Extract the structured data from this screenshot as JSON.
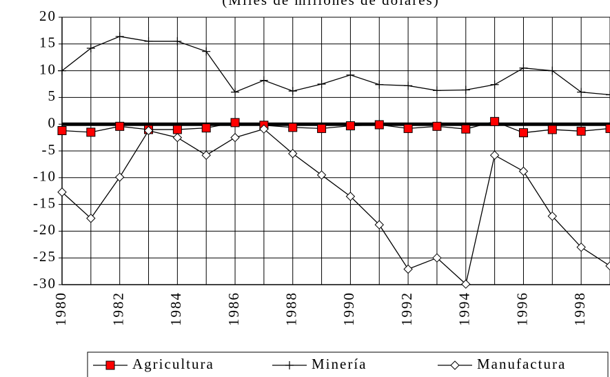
{
  "chart_data": {
    "type": "line",
    "title": "(Miles de millones de dólares)",
    "x": [
      1980,
      1981,
      1982,
      1983,
      1984,
      1985,
      1986,
      1987,
      1988,
      1989,
      1990,
      1991,
      1992,
      1993,
      1994,
      1995,
      1996,
      1997,
      1998,
      1999
    ],
    "series": [
      {
        "name": "Agricultura",
        "color": "#ff0000",
        "values": [
          -1.2,
          -1.5,
          -0.4,
          -1.0,
          -1.0,
          -0.7,
          0.3,
          -0.2,
          -0.6,
          -0.8,
          -0.3,
          -0.1,
          -0.8,
          -0.4,
          -0.9,
          0.5,
          -1.6,
          -1.0,
          -1.3,
          -0.8
        ]
      },
      {
        "name": "Minería",
        "color": "#000000",
        "values": [
          10,
          14.2,
          16.4,
          15.5,
          15.5,
          13.6,
          6,
          8.2,
          6.2,
          7.5,
          9.2,
          7.4,
          7.2,
          6.3,
          6.4,
          7.4,
          10.5,
          10,
          6,
          5.5
        ]
      },
      {
        "name": "Manufactura",
        "color": "#000000",
        "values": [
          -12.7,
          -17.6,
          -9.9,
          -1.2,
          -2.5,
          -5.8,
          -2.5,
          -0.9,
          -5.5,
          -9.5,
          -13.5,
          -18.8,
          -27.1,
          -25,
          -29.9,
          -5.8,
          -8.8,
          -17.2,
          -23,
          -26.5
        ]
      }
    ],
    "xlim": [
      1980,
      1999
    ],
    "xticks": [
      1980,
      1982,
      1984,
      1986,
      1988,
      1990,
      1992,
      1994,
      1996,
      1998
    ],
    "ylim": [
      -30,
      20
    ],
    "yticks": [
      -30,
      -25,
      -20,
      -15,
      -10,
      -5,
      0,
      5,
      10,
      15,
      20
    ],
    "grid": true
  }
}
